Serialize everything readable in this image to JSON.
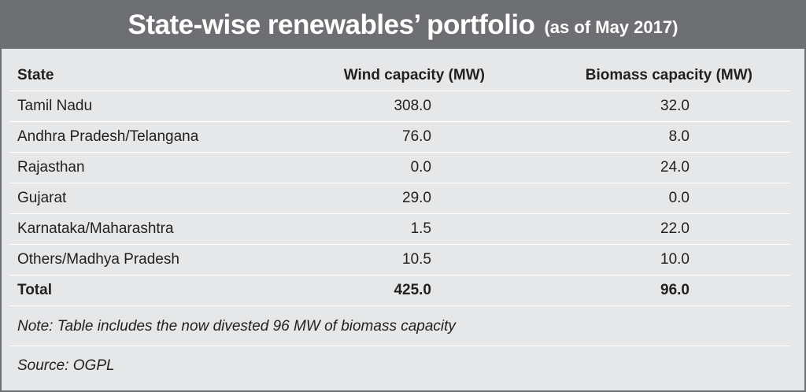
{
  "title": "State-wise renewables’ portfolio",
  "subtitle": "(as of May 2017)",
  "chart_data": {
    "type": "table",
    "columns": [
      "State",
      "Wind capacity (MW)",
      "Biomass capacity (MW)"
    ],
    "rows": [
      {
        "state": "Tamil Nadu",
        "wind": "308.0",
        "biomass": "32.0"
      },
      {
        "state": "Andhra Pradesh/Telangana",
        "wind": "76.0",
        "biomass": "8.0"
      },
      {
        "state": "Rajasthan",
        "wind": "0.0",
        "biomass": "24.0"
      },
      {
        "state": "Gujarat",
        "wind": "29.0",
        "biomass": "0.0"
      },
      {
        "state": "Karnataka/Maharashtra",
        "wind": "1.5",
        "biomass": "22.0"
      },
      {
        "state": "Others/Madhya Pradesh",
        "wind": "10.5",
        "biomass": "10.0"
      }
    ],
    "total": {
      "label": "Total",
      "wind": "425.0",
      "biomass": "96.0"
    }
  },
  "note": "Note: Table includes the now divested 96 MW of biomass capacity",
  "source": "Source: OGPL"
}
